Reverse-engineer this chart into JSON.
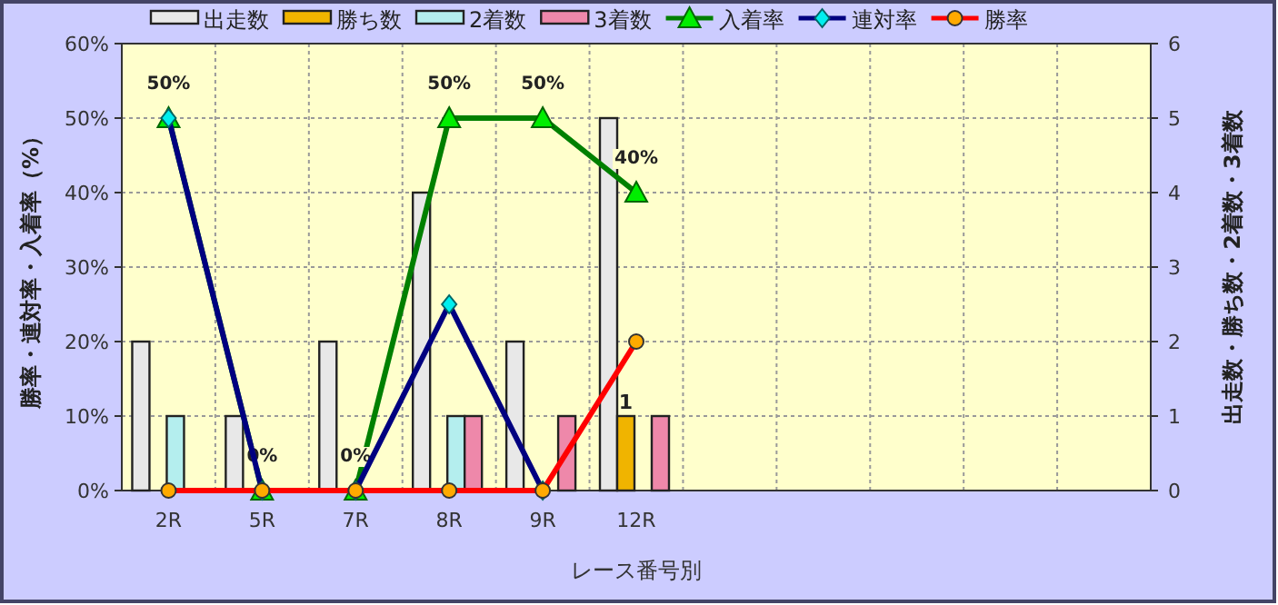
{
  "chart_data": {
    "type": "bar",
    "xlabel": "レース番号別",
    "ylabel": "勝率・連対率・入着率（%）",
    "y2label": "出走数・勝ち数・2着数・3着数",
    "categories": [
      "2R",
      "5R",
      "7R",
      "8R",
      "9R",
      "12R",
      null,
      null,
      null,
      null,
      null
    ],
    "ylim": [
      0,
      60
    ],
    "yticks": [
      {
        "value": 0,
        "label": "0%"
      },
      {
        "value": 10,
        "label": "10%"
      },
      {
        "value": 20,
        "label": "20%"
      },
      {
        "value": 30,
        "label": "30%"
      },
      {
        "value": 40,
        "label": "40%"
      },
      {
        "value": 50,
        "label": "50%"
      },
      {
        "value": 60,
        "label": "60%"
      }
    ],
    "y2lim": [
      0,
      6
    ],
    "y2ticks": [
      0,
      1,
      2,
      3,
      4,
      5,
      6
    ],
    "grid": true,
    "legend": "top",
    "series": [
      {
        "name": "出走数",
        "axis": "y2",
        "color": "#e8e8e8",
        "values": [
          2,
          1,
          2,
          4,
          2,
          5,
          null,
          null,
          null,
          null,
          null
        ]
      },
      {
        "name": "勝ち数",
        "axis": "y2",
        "color": "#f0b400",
        "values": [
          0,
          0,
          0,
          0,
          0,
          1,
          null,
          null,
          null,
          null,
          null
        ],
        "value_labels": [
          null,
          null,
          null,
          null,
          null,
          "1",
          null,
          null,
          null,
          null,
          null
        ]
      },
      {
        "name": "2着数",
        "axis": "y2",
        "color": "#b4eeee",
        "values": [
          1,
          0,
          0,
          1,
          0,
          0,
          null,
          null,
          null,
          null,
          null
        ]
      },
      {
        "name": "3着数",
        "axis": "y2",
        "color": "#ee88aa",
        "values": [
          0,
          0,
          0,
          1,
          1,
          1,
          null,
          null,
          null,
          null,
          null
        ]
      },
      {
        "name": "入着率",
        "type": "line",
        "axis": "y",
        "color": "#008000",
        "marker": "triangle",
        "values": [
          50,
          0,
          0,
          50,
          50,
          40,
          null,
          null,
          null,
          null,
          null
        ],
        "value_labels": [
          "50%",
          "0%",
          "0%",
          "50%",
          "50%",
          "40%",
          null,
          null,
          null,
          null,
          null
        ]
      },
      {
        "name": "連対率",
        "type": "line",
        "axis": "y",
        "color": "#000080",
        "marker": "diamond",
        "values": [
          50,
          0,
          0,
          25,
          0,
          null,
          null,
          null,
          null,
          null,
          null
        ]
      },
      {
        "name": "勝率",
        "type": "line",
        "axis": "y",
        "color": "#ff0000",
        "marker": "circle",
        "values": [
          0,
          0,
          0,
          0,
          0,
          20,
          null,
          null,
          null,
          null,
          null
        ]
      }
    ]
  }
}
